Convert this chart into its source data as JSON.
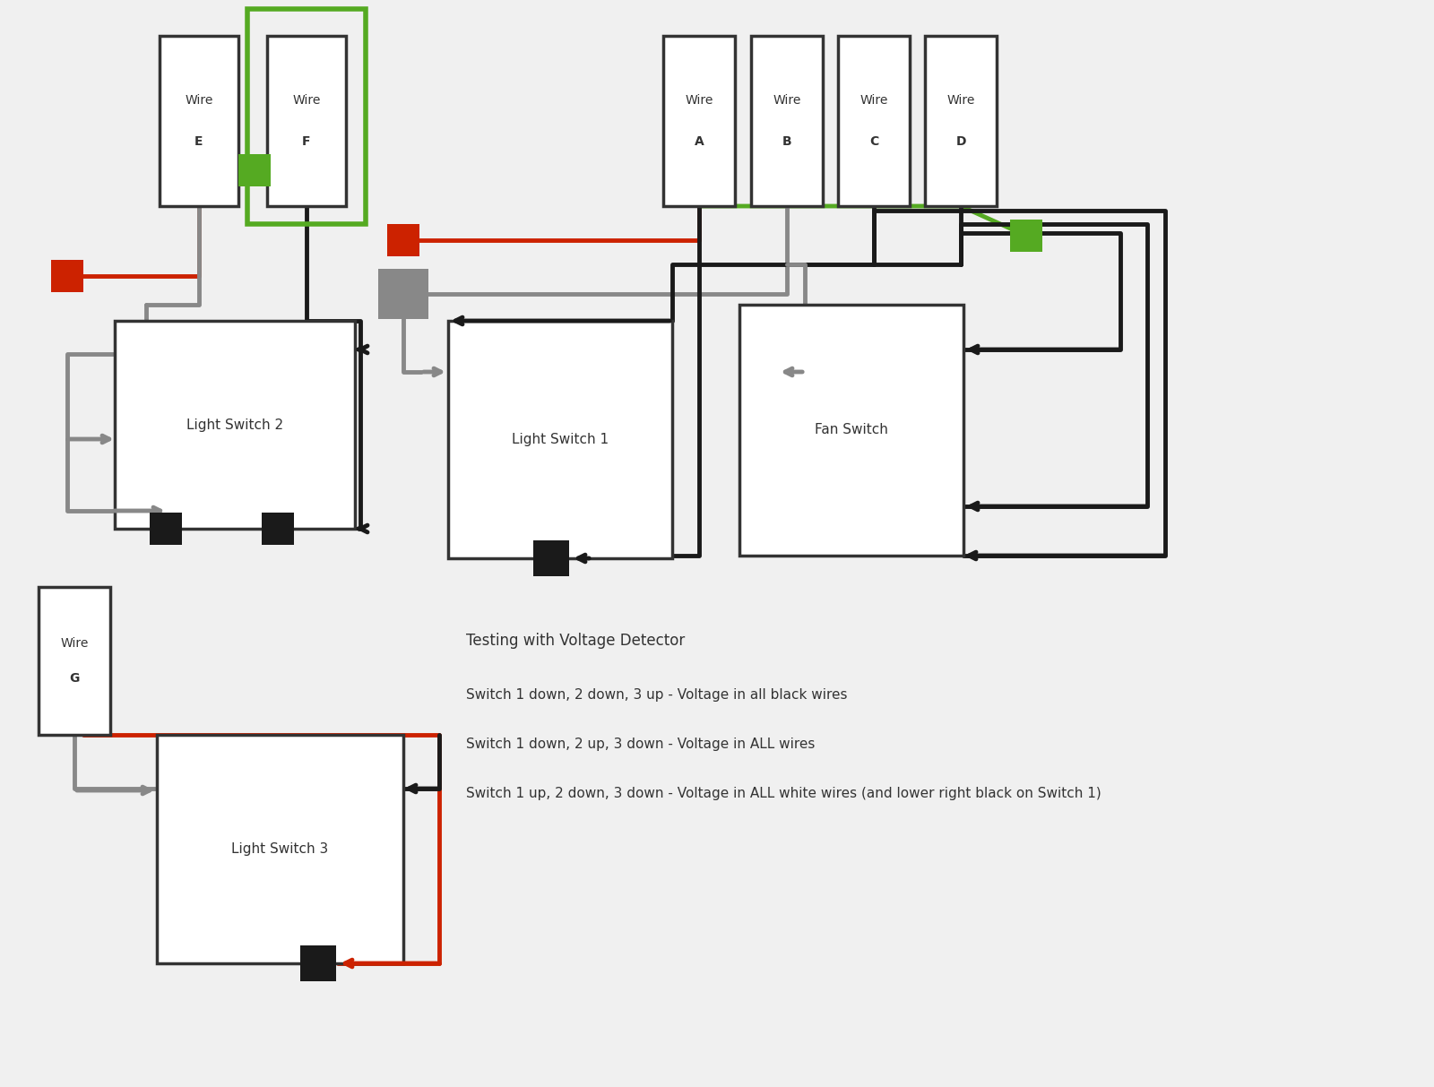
{
  "bg_color": "#f0f0f0",
  "colors": {
    "black": "#1a1a1a",
    "red": "#cc2200",
    "gray": "#888888",
    "green": "#55aa22",
    "white": "#ffffff",
    "outline": "#333333"
  },
  "note_title": "Testing with Voltage Detector",
  "notes": [
    "Switch 1 down, 2 down, 3 up - Voltage in all black wires",
    "Switch 1 down, 2 up, 3 down - Voltage in ALL wires",
    "Switch 1 up, 2 down, 3 down - Voltage in ALL white wires (and lower right black on Switch 1)"
  ]
}
